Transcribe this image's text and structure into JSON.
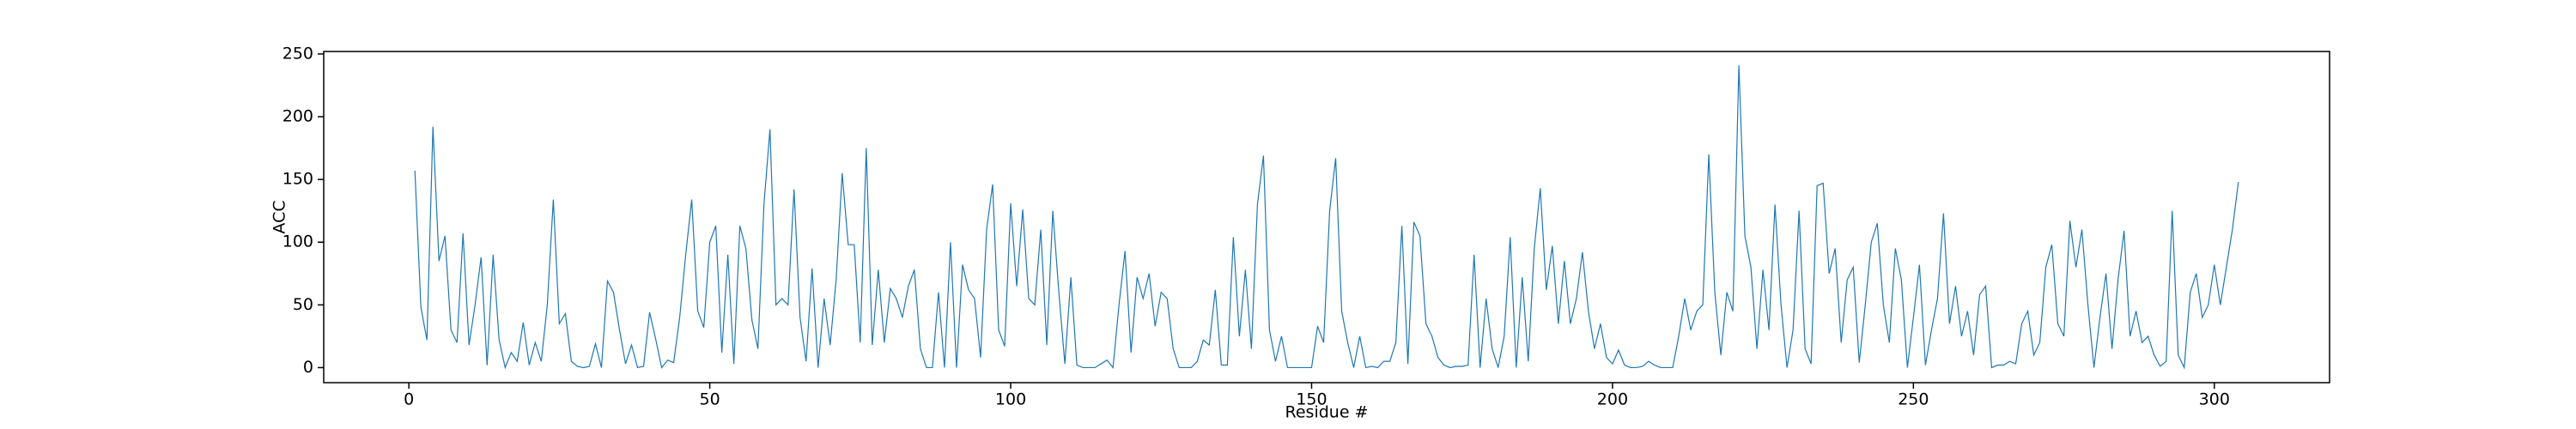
{
  "chart_data": {
    "type": "line",
    "xlabel": "Residue #",
    "ylabel": "ACC",
    "x": [
      1,
      2,
      3,
      4,
      5,
      6,
      7,
      8,
      9,
      10,
      11,
      12,
      13,
      14,
      15,
      16,
      17,
      18,
      19,
      20,
      21,
      22,
      23,
      24,
      25,
      26,
      27,
      28,
      29,
      30,
      31,
      32,
      33,
      34,
      35,
      36,
      37,
      38,
      39,
      40,
      41,
      42,
      43,
      44,
      45,
      46,
      47,
      48,
      49,
      50,
      51,
      52,
      53,
      54,
      55,
      56,
      57,
      58,
      59,
      60,
      61,
      62,
      63,
      64,
      65,
      66,
      67,
      68,
      69,
      70,
      71,
      72,
      73,
      74,
      75,
      76,
      77,
      78,
      79,
      80,
      81,
      82,
      83,
      84,
      85,
      86,
      87,
      88,
      89,
      90,
      91,
      92,
      93,
      94,
      95,
      96,
      97,
      98,
      99,
      100,
      101,
      102,
      103,
      104,
      105,
      106,
      107,
      108,
      109,
      110,
      111,
      112,
      113,
      114,
      115,
      116,
      117,
      118,
      119,
      120,
      121,
      122,
      123,
      124,
      125,
      126,
      127,
      128,
      129,
      130,
      131,
      132,
      133,
      134,
      135,
      136,
      137,
      138,
      139,
      140,
      141,
      142,
      143,
      144,
      145,
      146,
      147,
      148,
      149,
      150,
      151,
      152,
      153,
      154,
      155,
      156,
      157,
      158,
      159,
      160,
      161,
      162,
      163,
      164,
      165,
      166,
      167,
      168,
      169,
      170,
      171,
      172,
      173,
      174,
      175,
      176,
      177,
      178,
      179,
      180,
      181,
      182,
      183,
      184,
      185,
      186,
      187,
      188,
      189,
      190,
      191,
      192,
      193,
      194,
      195,
      196,
      197,
      198,
      199,
      200,
      201,
      202,
      203,
      204,
      205,
      206,
      207,
      208,
      209,
      210,
      211,
      212,
      213,
      214,
      215,
      216,
      217,
      218,
      219,
      220,
      221,
      222,
      223,
      224,
      225,
      226,
      227,
      228,
      229,
      230,
      231,
      232,
      233,
      234,
      235,
      236,
      237,
      238,
      239,
      240,
      241,
      242,
      243,
      244,
      245,
      246,
      247,
      248,
      249,
      250,
      251,
      252,
      253,
      254,
      255,
      256,
      257,
      258,
      259,
      260,
      261,
      262,
      263,
      264,
      265,
      266,
      267,
      268,
      269,
      270,
      271,
      272,
      273,
      274,
      275,
      276,
      277,
      278,
      279,
      280,
      281,
      282,
      283,
      284,
      285,
      286,
      287,
      288,
      289,
      290,
      291,
      292,
      293,
      294,
      295,
      296,
      297,
      298,
      299,
      300,
      301,
      302,
      303,
      304
    ],
    "series": [
      {
        "color": "#1f77b4",
        "values": [
          157,
          48,
          22,
          192,
          85,
          105,
          30,
          20,
          107,
          18,
          50,
          88,
          2,
          90,
          22,
          0,
          12,
          5,
          36,
          2,
          20,
          5,
          50,
          134,
          35,
          43,
          5,
          1,
          0,
          1,
          19,
          0,
          69,
          60,
          30,
          3,
          18,
          0,
          1,
          44,
          23,
          0,
          6,
          4,
          40,
          90,
          134,
          45,
          32,
          100,
          113,
          12,
          90,
          3,
          113,
          95,
          38,
          15,
          130,
          190,
          50,
          55,
          50,
          142,
          40,
          5,
          79,
          0,
          55,
          18,
          70,
          155,
          98,
          98,
          20,
          175,
          18,
          78,
          20,
          63,
          55,
          40,
          65,
          78,
          15,
          0,
          0,
          60,
          0,
          100,
          0,
          82,
          62,
          55,
          8,
          110,
          146,
          30,
          17,
          131,
          65,
          126,
          55,
          50,
          110,
          18,
          125,
          60,
          3,
          72,
          2,
          0,
          0,
          0,
          3,
          6,
          0,
          50,
          93,
          12,
          72,
          55,
          75,
          33,
          60,
          55,
          15,
          0,
          0,
          0,
          5,
          22,
          18,
          62,
          2,
          2,
          104,
          25,
          78,
          15,
          130,
          169,
          30,
          5,
          25,
          0,
          0,
          0,
          0,
          0,
          33,
          20,
          125,
          167,
          45,
          20,
          0,
          25,
          0,
          1,
          0,
          5,
          5,
          20,
          113,
          3,
          116,
          105,
          35,
          25,
          8,
          2,
          0,
          1,
          1,
          2,
          90,
          0,
          55,
          15,
          0,
          25,
          104,
          0,
          72,
          5,
          95,
          143,
          62,
          97,
          35,
          85,
          35,
          55,
          92,
          45,
          15,
          35,
          8,
          3,
          14,
          2,
          0,
          0,
          1,
          5,
          2,
          0,
          0,
          0,
          25,
          55,
          30,
          45,
          50,
          170,
          60,
          10,
          60,
          45,
          241,
          105,
          80,
          15,
          78,
          30,
          130,
          50,
          0,
          30,
          125,
          15,
          3,
          145,
          147,
          75,
          95,
          20,
          70,
          80,
          4,
          50,
          100,
          115,
          50,
          20,
          95,
          70,
          0,
          40,
          82,
          2,
          30,
          55,
          123,
          35,
          65,
          25,
          45,
          10,
          58,
          65,
          0,
          2,
          2,
          5,
          3,
          35,
          45,
          10,
          20,
          80,
          98,
          35,
          25,
          117,
          80,
          110,
          50,
          0,
          40,
          75,
          15,
          70,
          109,
          25,
          45,
          20,
          25,
          10,
          1,
          5,
          125,
          10,
          0,
          60,
          75,
          40,
          50,
          82,
          50,
          80,
          110,
          148
        ]
      }
    ],
    "xlim": [
      -14.15,
      319.15
    ],
    "xticks": [
      0,
      50,
      100,
      150,
      200,
      250,
      300
    ],
    "ylim": [
      -12,
      252
    ],
    "yticks": [
      0,
      50,
      100,
      150,
      200,
      250
    ]
  }
}
